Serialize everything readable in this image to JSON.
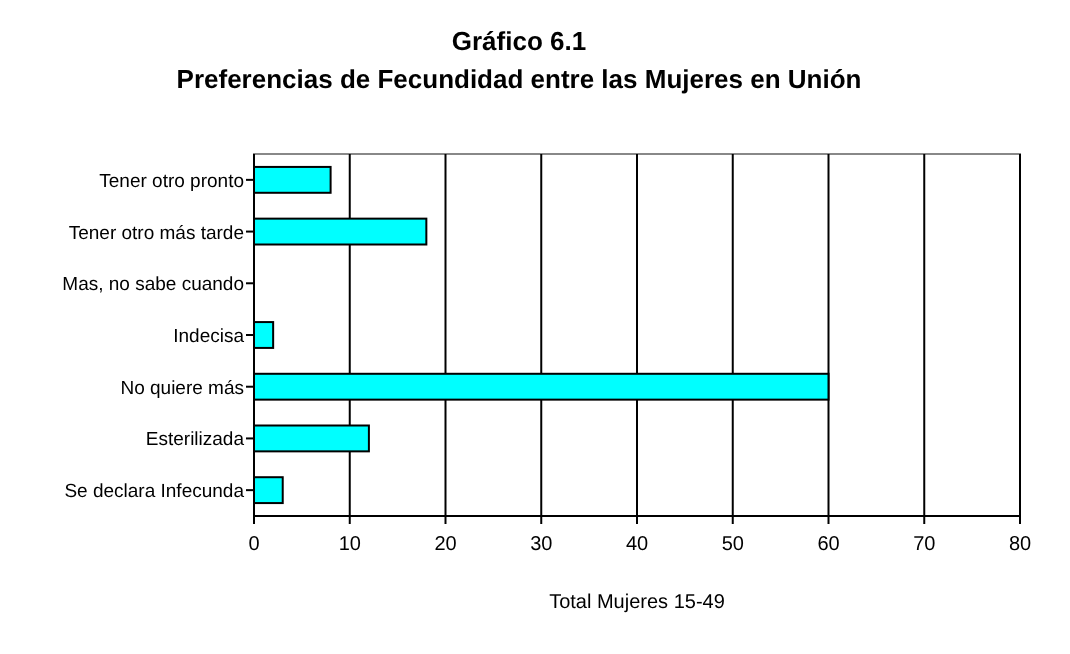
{
  "chart_data": {
    "type": "bar",
    "orientation": "horizontal",
    "title": "Gráfico 6.1",
    "subtitle": "Preferencias de Fecundidad entre las Mujeres en Unión",
    "xlabel": "Total Mujeres 15-49",
    "categories": [
      "Tener otro pronto",
      "Tener otro más tarde",
      "Mas, no sabe cuando",
      "Indecisa",
      "No quiere más",
      "Esterilizada",
      "Se declara Infecunda"
    ],
    "values": [
      8,
      18,
      0,
      2,
      60,
      12,
      3
    ],
    "color": "#00ffff",
    "xlim": [
      0,
      80
    ],
    "xticks": [
      0,
      10,
      20,
      30,
      40,
      50,
      60,
      70,
      80
    ],
    "grid": "x"
  }
}
